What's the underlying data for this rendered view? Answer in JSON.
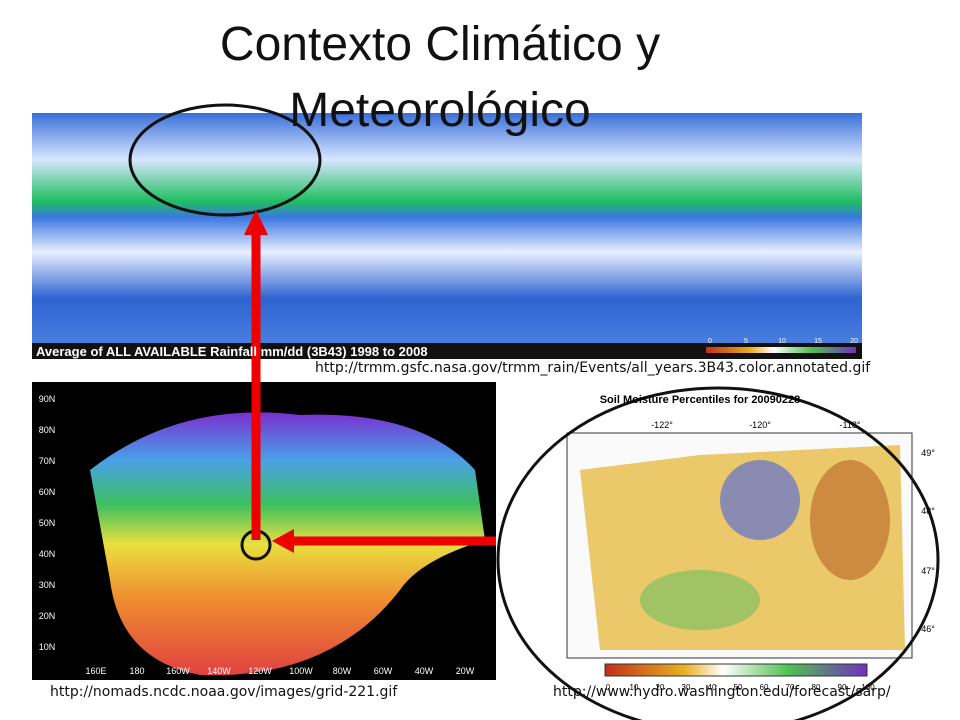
{
  "title": "Contexto Climático y Meteorológico",
  "rainfall_map": {
    "caption": "Average of ALL AVAILABLE Rainfall mm/dd (3B43) 1998 to 2008",
    "colorbar_ticks": [
      0,
      5,
      10,
      15,
      20
    ],
    "source": "http://trmm.gsfc.nasa.gov/trmm_rain/Events/all_years.3B43.color.annotated.gif"
  },
  "grid_map": {
    "lat_labels": [
      "90N",
      "80N",
      "70N",
      "60N",
      "50N",
      "40N",
      "30N",
      "20N",
      "10N"
    ],
    "lon_labels": [
      "160E",
      "180",
      "160W",
      "140W",
      "120W",
      "100W",
      "80W",
      "60W",
      "40W",
      "20W"
    ],
    "source": "http://nomads.ncdc.noaa.gov/images/grid-221.gif"
  },
  "soil_map": {
    "title": "Soil Moisture Percentiles for 20090228",
    "lon_labels": [
      "-122°",
      "-120°",
      "-118°"
    ],
    "lat_labels": [
      "49°",
      "48°",
      "47°",
      "46°"
    ],
    "colorbar_ticks": [
      0,
      10,
      20,
      30,
      40,
      50,
      60,
      70,
      80,
      90,
      100
    ],
    "source": "http://www.hydro.washington.edu/forecast/sarp/"
  }
}
